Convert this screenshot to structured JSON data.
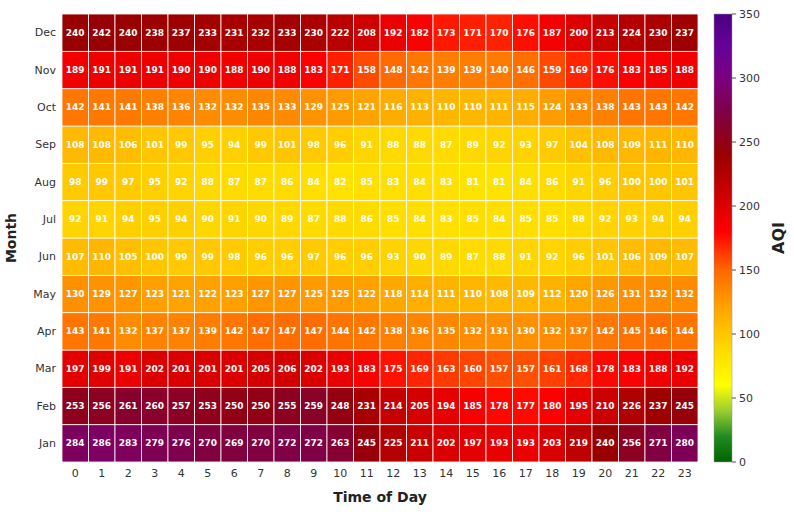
{
  "chart_data": {
    "type": "heatmap",
    "x_label": "Time of Day",
    "y_label": "Month",
    "x": [
      0,
      1,
      2,
      3,
      4,
      5,
      6,
      7,
      8,
      9,
      10,
      11,
      12,
      13,
      14,
      15,
      16,
      17,
      18,
      19,
      20,
      21,
      22,
      23
    ],
    "y": [
      "Jan",
      "Feb",
      "Mar",
      "Apr",
      "May",
      "Jun",
      "Jul",
      "Aug",
      "Sep",
      "Oct",
      "Nov",
      "Dec"
    ],
    "values": [
      [
        284,
        286,
        283,
        279,
        276,
        270,
        269,
        270,
        272,
        272,
        263,
        245,
        225,
        211,
        202,
        197,
        193,
        193,
        203,
        219,
        240,
        256,
        271,
        280
      ],
      [
        253,
        256,
        261,
        260,
        257,
        253,
        250,
        250,
        255,
        259,
        248,
        231,
        214,
        205,
        194,
        185,
        178,
        177,
        180,
        195,
        210,
        226,
        237,
        245
      ],
      [
        197,
        199,
        191,
        202,
        201,
        201,
        201,
        205,
        206,
        202,
        193,
        183,
        175,
        169,
        163,
        160,
        157,
        157,
        161,
        168,
        178,
        183,
        188,
        192
      ],
      [
        143,
        141,
        132,
        137,
        137,
        139,
        142,
        147,
        147,
        147,
        144,
        142,
        138,
        136,
        135,
        132,
        131,
        130,
        132,
        137,
        142,
        145,
        146,
        144
      ],
      [
        130,
        129,
        127,
        123,
        121,
        122,
        123,
        127,
        127,
        125,
        125,
        122,
        118,
        114,
        111,
        110,
        108,
        109,
        112,
        120,
        126,
        131,
        132,
        132
      ],
      [
        107,
        110,
        105,
        100,
        99,
        99,
        98,
        96,
        96,
        97,
        96,
        96,
        93,
        90,
        89,
        87,
        88,
        91,
        92,
        96,
        101,
        106,
        109,
        107
      ],
      [
        92,
        91,
        94,
        95,
        94,
        90,
        91,
        90,
        89,
        87,
        88,
        86,
        85,
        84,
        83,
        85,
        84,
        85,
        85,
        88,
        92,
        93,
        94,
        94
      ],
      [
        98,
        99,
        97,
        95,
        92,
        88,
        87,
        87,
        86,
        84,
        82,
        85,
        83,
        84,
        83,
        81,
        81,
        84,
        86,
        91,
        96,
        100,
        100,
        101
      ],
      [
        108,
        108,
        106,
        101,
        99,
        95,
        94,
        99,
        101,
        98,
        96,
        91,
        88,
        88,
        87,
        89,
        92,
        93,
        97,
        104,
        108,
        109,
        111,
        110
      ],
      [
        142,
        141,
        141,
        138,
        136,
        132,
        132,
        135,
        133,
        129,
        125,
        121,
        116,
        113,
        110,
        110,
        111,
        115,
        124,
        133,
        138,
        143,
        143,
        142
      ],
      [
        189,
        191,
        191,
        191,
        190,
        190,
        188,
        190,
        188,
        183,
        171,
        158,
        148,
        142,
        139,
        139,
        140,
        146,
        159,
        169,
        176,
        183,
        185,
        188
      ],
      [
        240,
        242,
        240,
        238,
        237,
        233,
        231,
        232,
        233,
        230,
        222,
        208,
        192,
        182,
        173,
        171,
        170,
        176,
        187,
        200,
        213,
        224,
        230,
        237
      ]
    ],
    "data_labels": true,
    "colorbar": {
      "label": "AQI",
      "range": [
        0,
        350
      ],
      "ticks": [
        0,
        50,
        100,
        150,
        200,
        250,
        300,
        350
      ]
    },
    "color_stops": [
      [
        0.0,
        "#006400"
      ],
      [
        0.057,
        "#228B22"
      ],
      [
        0.114,
        "#9ACD32"
      ],
      [
        0.171,
        "#FFFF00"
      ],
      [
        0.257,
        "#FFD700"
      ],
      [
        0.343,
        "#FFA500"
      ],
      [
        0.429,
        "#FF6600"
      ],
      [
        0.514,
        "#FF0000"
      ],
      [
        0.6,
        "#CC0000"
      ],
      [
        0.686,
        "#990000"
      ],
      [
        0.771,
        "#800040"
      ],
      [
        0.857,
        "#7B0080"
      ],
      [
        0.929,
        "#660099"
      ],
      [
        1.0,
        "#4B0082"
      ]
    ]
  }
}
